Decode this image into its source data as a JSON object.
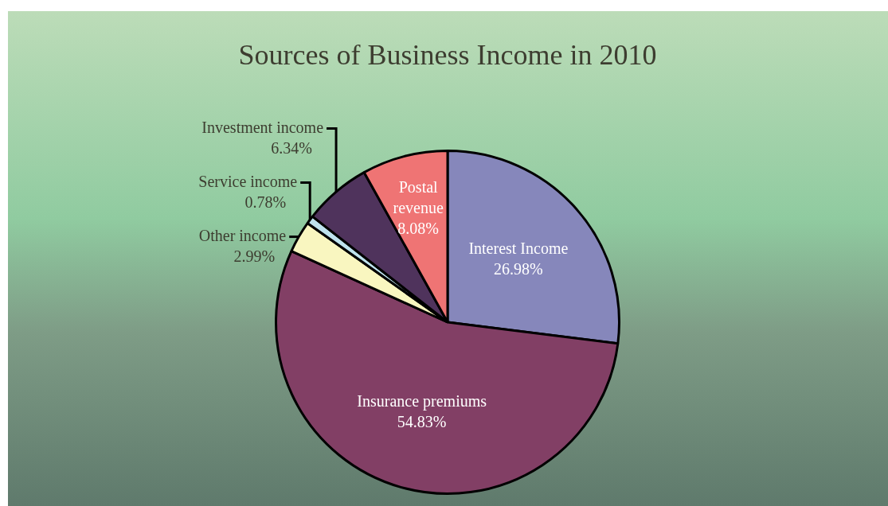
{
  "chart_data": {
    "type": "pie",
    "title": "Sources of Business Income in 2010",
    "categories": [
      "Interest Income",
      "Insurance premiums",
      "Other income",
      "Service income",
      "Investment income",
      "Postal revenue"
    ],
    "values": [
      26.98,
      54.83,
      2.99,
      0.78,
      6.34,
      8.08
    ],
    "colors": [
      "#8687bb",
      "#823f65",
      "#f9f6c0",
      "#bfe3ee",
      "#4f335c",
      "#ef7474"
    ],
    "value_labels": [
      "26.98%",
      "54.83%",
      "2.99%",
      "0.78%",
      "6.34%",
      "8.08%"
    ],
    "legend": false
  }
}
